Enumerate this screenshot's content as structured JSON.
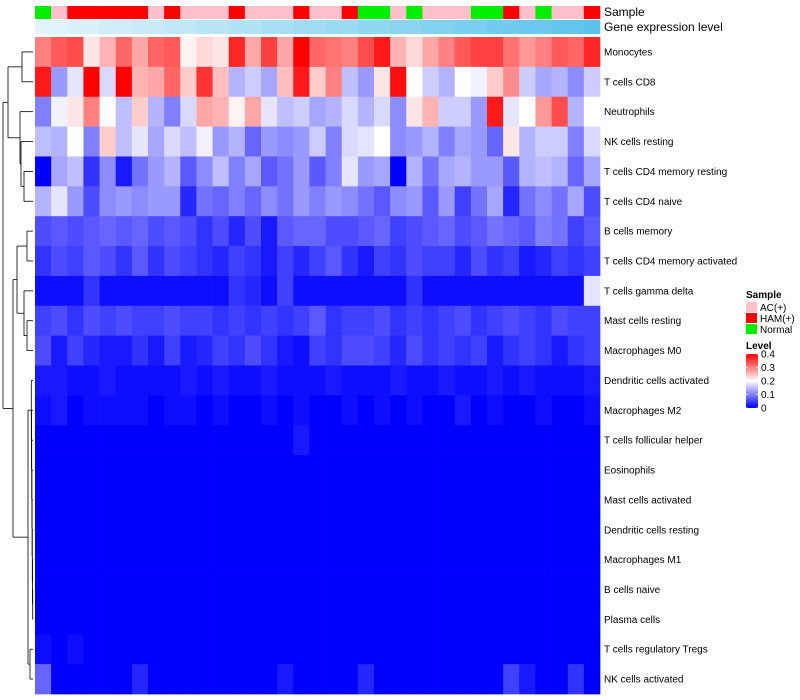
{
  "chart_data": {
    "type": "heatmap",
    "title": "",
    "annotation_tracks": [
      "Sample",
      "Gene expression level"
    ],
    "rows": [
      "Monocytes",
      "T cells CD8",
      "Neutrophils",
      "NK cells resting",
      "T cells CD4 memory resting",
      "T cells CD4 naive",
      "B cells memory",
      "T cells CD4 memory activated",
      "T cells gamma delta",
      "Mast cells resting",
      "Macrophages M0",
      "Dendritic cells activated",
      "Macrophages M2",
      "T cells follicular helper",
      "Eosinophils",
      "Mast cells activated",
      "Dendritic cells resting",
      "Macrophages M1",
      "B cells naive",
      "Plasma cells",
      "T cells regulatory  Tregs",
      "NK cells activated"
    ],
    "sample_groups": [
      "Normal",
      "AC(+)",
      "HAM(+)",
      "HAM(+)",
      "HAM(+)",
      "HAM(+)",
      "HAM(+)",
      "AC(+)",
      "HAM(+)",
      "AC(+)",
      "AC(+)",
      "AC(+)",
      "HAM(+)",
      "AC(+)",
      "AC(+)",
      "AC(+)",
      "HAM(+)",
      "AC(+)",
      "AC(+)",
      "HAM(+)",
      "Normal",
      "Normal",
      "AC(+)",
      "Normal",
      "AC(+)",
      "AC(+)",
      "AC(+)",
      "Normal",
      "Normal",
      "HAM(+)",
      "AC(+)",
      "Normal",
      "AC(+)",
      "AC(+)",
      "HAM(+)"
    ],
    "expression_level": [
      0.02,
      0.02,
      0.03,
      0.03,
      0.04,
      0.04,
      0.05,
      0.05,
      0.06,
      0.06,
      0.07,
      0.07,
      0.08,
      0.08,
      0.09,
      0.09,
      0.1,
      0.1,
      0.11,
      0.11,
      0.12,
      0.12,
      0.13,
      0.13,
      0.14,
      0.14,
      0.15,
      0.15,
      0.16,
      0.16,
      0.17,
      0.17,
      0.18,
      0.18,
      0.19
    ],
    "values": [
      [
        0.3,
        0.33,
        0.34,
        0.22,
        0.26,
        0.32,
        0.27,
        0.32,
        0.33,
        0.21,
        0.23,
        0.22,
        0.37,
        0.27,
        0.35,
        0.27,
        0.4,
        0.32,
        0.31,
        0.3,
        0.34,
        0.38,
        0.26,
        0.23,
        0.27,
        0.3,
        0.33,
        0.35,
        0.35,
        0.31,
        0.28,
        0.3,
        0.33,
        0.32,
        0.37
      ],
      [
        0.38,
        0.12,
        0.18,
        0.4,
        0.17,
        0.4,
        0.26,
        0.27,
        0.32,
        0.24,
        0.36,
        0.25,
        0.14,
        0.16,
        0.13,
        0.25,
        0.38,
        0.24,
        0.3,
        0.15,
        0.12,
        0.22,
        0.39,
        0.2,
        0.16,
        0.14,
        0.2,
        0.19,
        0.24,
        0.29,
        0.16,
        0.13,
        0.14,
        0.11,
        0.16
      ],
      [
        0.1,
        0.19,
        0.22,
        0.3,
        0.2,
        0.15,
        0.24,
        0.14,
        0.1,
        0.17,
        0.27,
        0.26,
        0.21,
        0.27,
        0.18,
        0.15,
        0.16,
        0.13,
        0.14,
        0.17,
        0.14,
        0.17,
        0.11,
        0.22,
        0.26,
        0.16,
        0.16,
        0.12,
        0.38,
        0.18,
        0.2,
        0.28,
        0.34,
        0.14,
        0.2
      ],
      [
        0.15,
        0.14,
        0.2,
        0.1,
        0.24,
        0.15,
        0.18,
        0.13,
        0.17,
        0.15,
        0.19,
        0.12,
        0.14,
        0.08,
        0.12,
        0.11,
        0.12,
        0.16,
        0.1,
        0.17,
        0.18,
        0.2,
        0.11,
        0.12,
        0.14,
        0.1,
        0.13,
        0.12,
        0.08,
        0.22,
        0.14,
        0.16,
        0.16,
        0.1,
        0.17
      ],
      [
        0.0,
        0.13,
        0.15,
        0.04,
        0.11,
        0.02,
        0.09,
        0.12,
        0.14,
        0.07,
        0.11,
        0.15,
        0.1,
        0.13,
        0.07,
        0.09,
        0.12,
        0.07,
        0.1,
        0.18,
        0.12,
        0.13,
        0.0,
        0.14,
        0.09,
        0.13,
        0.14,
        0.12,
        0.12,
        0.07,
        0.14,
        0.15,
        0.14,
        0.08,
        0.13
      ],
      [
        0.14,
        0.18,
        0.12,
        0.06,
        0.11,
        0.12,
        0.11,
        0.12,
        0.12,
        0.03,
        0.09,
        0.08,
        0.1,
        0.08,
        0.11,
        0.09,
        0.12,
        0.1,
        0.12,
        0.11,
        0.09,
        0.07,
        0.11,
        0.12,
        0.07,
        0.12,
        0.05,
        0.09,
        0.13,
        0.03,
        0.09,
        0.11,
        0.09,
        0.13,
        0.06
      ],
      [
        0.06,
        0.07,
        0.06,
        0.07,
        0.08,
        0.07,
        0.08,
        0.06,
        0.07,
        0.06,
        0.04,
        0.06,
        0.03,
        0.06,
        0.02,
        0.07,
        0.08,
        0.08,
        0.06,
        0.06,
        0.07,
        0.08,
        0.05,
        0.06,
        0.07,
        0.08,
        0.06,
        0.07,
        0.09,
        0.08,
        0.07,
        0.1,
        0.09,
        0.05,
        0.07
      ],
      [
        0.04,
        0.06,
        0.05,
        0.07,
        0.06,
        0.04,
        0.07,
        0.04,
        0.06,
        0.05,
        0.04,
        0.03,
        0.05,
        0.04,
        0.02,
        0.05,
        0.03,
        0.05,
        0.07,
        0.04,
        0.02,
        0.05,
        0.04,
        0.06,
        0.05,
        0.05,
        0.03,
        0.06,
        0.04,
        0.05,
        0.02,
        0.03,
        0.05,
        0.04,
        0.05
      ],
      [
        0.01,
        0.01,
        0.01,
        0.04,
        0.01,
        0.01,
        0.01,
        0.01,
        0.01,
        0.01,
        0.01,
        0.01,
        0.04,
        0.03,
        0.01,
        0.05,
        0.01,
        0.01,
        0.01,
        0.01,
        0.01,
        0.01,
        0.01,
        0.04,
        0.01,
        0.01,
        0.01,
        0.01,
        0.01,
        0.01,
        0.01,
        0.01,
        0.01,
        0.01,
        0.18
      ],
      [
        0.05,
        0.06,
        0.04,
        0.06,
        0.05,
        0.06,
        0.05,
        0.05,
        0.06,
        0.05,
        0.05,
        0.04,
        0.05,
        0.04,
        0.05,
        0.04,
        0.05,
        0.07,
        0.04,
        0.05,
        0.05,
        0.06,
        0.04,
        0.05,
        0.04,
        0.05,
        0.06,
        0.04,
        0.05,
        0.06,
        0.05,
        0.04,
        0.06,
        0.05,
        0.05
      ],
      [
        0.06,
        0.02,
        0.05,
        0.03,
        0.02,
        0.02,
        0.04,
        0.02,
        0.05,
        0.02,
        0.03,
        0.05,
        0.04,
        0.06,
        0.04,
        0.02,
        0.01,
        0.05,
        0.04,
        0.06,
        0.06,
        0.05,
        0.03,
        0.06,
        0.04,
        0.05,
        0.04,
        0.05,
        0.02,
        0.04,
        0.05,
        0.04,
        0.02,
        0.04,
        0.05
      ],
      [
        0.02,
        0.02,
        0.01,
        0.01,
        0.02,
        0.01,
        0.01,
        0.01,
        0.01,
        0.02,
        0.01,
        0.02,
        0.01,
        0.01,
        0.02,
        0.01,
        0.01,
        0.01,
        0.02,
        0.01,
        0.01,
        0.01,
        0.02,
        0.01,
        0.01,
        0.02,
        0.01,
        0.01,
        0.02,
        0.01,
        0.02,
        0.01,
        0.01,
        0.01,
        0.02
      ],
      [
        0.01,
        0.02,
        0.0,
        0.01,
        0.01,
        0.01,
        0.01,
        0.0,
        0.01,
        0.01,
        0.0,
        0.01,
        0.0,
        0.0,
        0.01,
        0.0,
        0.01,
        0.0,
        0.0,
        0.01,
        0.0,
        0.01,
        0.0,
        0.01,
        0.0,
        0.0,
        0.02,
        0.0,
        0.01,
        0.0,
        0.0,
        0.01,
        0.0,
        0.0,
        0.01
      ],
      [
        0.0,
        0.0,
        0.0,
        0.0,
        0.0,
        0.0,
        0.0,
        0.0,
        0.0,
        0.0,
        0.0,
        0.0,
        0.0,
        0.0,
        0.0,
        0.0,
        0.02,
        0.0,
        0.0,
        0.0,
        0.0,
        0.0,
        0.0,
        0.0,
        0.0,
        0.0,
        0.0,
        0.0,
        0.0,
        0.0,
        0.0,
        0.0,
        0.0,
        0.0,
        0.0
      ],
      [
        0.0,
        0.0,
        0.0,
        0.0,
        0.0,
        0.0,
        0.0,
        0.0,
        0.0,
        0.0,
        0.0,
        0.0,
        0.0,
        0.0,
        0.0,
        0.0,
        0.0,
        0.0,
        0.0,
        0.0,
        0.0,
        0.0,
        0.0,
        0.0,
        0.0,
        0.0,
        0.0,
        0.0,
        0.0,
        0.0,
        0.0,
        0.0,
        0.0,
        0.0,
        0.0
      ],
      [
        0.0,
        0.0,
        0.0,
        0.0,
        0.0,
        0.0,
        0.0,
        0.0,
        0.0,
        0.0,
        0.0,
        0.0,
        0.0,
        0.0,
        0.0,
        0.0,
        0.0,
        0.0,
        0.0,
        0.0,
        0.0,
        0.0,
        0.0,
        0.0,
        0.0,
        0.0,
        0.0,
        0.0,
        0.0,
        0.0,
        0.0,
        0.0,
        0.0,
        0.0,
        0.0
      ],
      [
        0.0,
        0.0,
        0.0,
        0.0,
        0.0,
        0.0,
        0.0,
        0.0,
        0.0,
        0.0,
        0.0,
        0.0,
        0.0,
        0.0,
        0.0,
        0.0,
        0.0,
        0.0,
        0.0,
        0.0,
        0.0,
        0.0,
        0.0,
        0.0,
        0.0,
        0.0,
        0.0,
        0.0,
        0.0,
        0.0,
        0.0,
        0.0,
        0.0,
        0.0,
        0.0
      ],
      [
        0.0,
        0.0,
        0.0,
        0.0,
        0.0,
        0.0,
        0.0,
        0.0,
        0.0,
        0.0,
        0.0,
        0.0,
        0.0,
        0.0,
        0.0,
        0.0,
        0.0,
        0.0,
        0.0,
        0.0,
        0.0,
        0.0,
        0.0,
        0.0,
        0.0,
        0.0,
        0.0,
        0.0,
        0.0,
        0.0,
        0.0,
        0.0,
        0.0,
        0.0,
        0.0
      ],
      [
        0.0,
        0.0,
        0.0,
        0.0,
        0.0,
        0.0,
        0.0,
        0.0,
        0.0,
        0.0,
        0.0,
        0.0,
        0.0,
        0.0,
        0.0,
        0.0,
        0.0,
        0.0,
        0.0,
        0.0,
        0.0,
        0.0,
        0.0,
        0.0,
        0.0,
        0.0,
        0.0,
        0.0,
        0.0,
        0.0,
        0.0,
        0.0,
        0.0,
        0.0,
        0.0
      ],
      [
        0.0,
        0.0,
        0.0,
        0.0,
        0.0,
        0.0,
        0.0,
        0.0,
        0.0,
        0.0,
        0.0,
        0.0,
        0.0,
        0.0,
        0.0,
        0.0,
        0.0,
        0.0,
        0.0,
        0.0,
        0.0,
        0.0,
        0.0,
        0.0,
        0.0,
        0.0,
        0.0,
        0.0,
        0.0,
        0.0,
        0.0,
        0.0,
        0.0,
        0.0,
        0.0
      ],
      [
        0.01,
        0.0,
        0.01,
        0.0,
        0.0,
        0.0,
        0.0,
        0.0,
        0.0,
        0.0,
        0.0,
        0.0,
        0.0,
        0.0,
        0.0,
        0.0,
        0.0,
        0.0,
        0.0,
        0.0,
        0.0,
        0.0,
        0.0,
        0.0,
        0.0,
        0.0,
        0.0,
        0.0,
        0.0,
        0.0,
        0.0,
        0.0,
        0.0,
        0.0,
        0.0
      ],
      [
        0.08,
        0.0,
        0.0,
        0.0,
        0.0,
        0.0,
        0.03,
        0.0,
        0.0,
        0.0,
        0.0,
        0.0,
        0.0,
        0.0,
        0.0,
        0.02,
        0.0,
        0.0,
        0.0,
        0.0,
        0.03,
        0.0,
        0.0,
        0.0,
        0.0,
        0.0,
        0.0,
        0.0,
        0.0,
        0.05,
        0.02,
        0.0,
        0.0,
        0.04,
        0.0
      ]
    ],
    "legend_sample": {
      "title": "Sample",
      "items": [
        {
          "label": "AC(+)",
          "color": "#ffc0cb"
        },
        {
          "label": "HAM(+)",
          "color": "#ff0000"
        },
        {
          "label": "Normal",
          "color": "#00ee00"
        }
      ]
    },
    "legend_level": {
      "title": "Level",
      "ticks": [
        "0.4",
        "0.3",
        "0.2",
        "0.1",
        "0"
      ],
      "tick_values": [
        0.4,
        0.3,
        0.2,
        0.1,
        0.0
      ],
      "range": [
        0,
        0.4
      ]
    },
    "colors": {
      "low": "#0000ff",
      "mid": "#ffffff",
      "high": "#ff0000",
      "expression_low": "#e0f4fb",
      "expression_high": "#5bc2ec",
      "dendrogram": "#000000"
    }
  }
}
